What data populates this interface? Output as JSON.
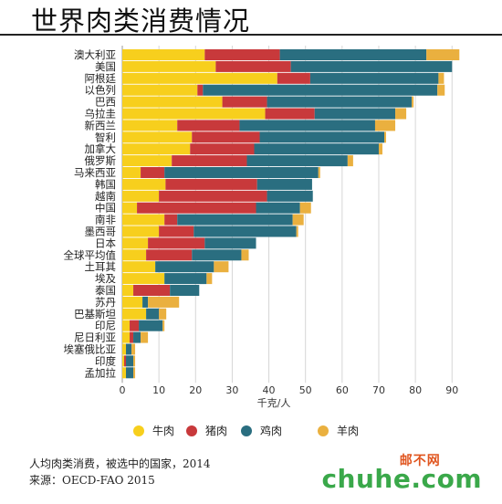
{
  "title": "世界肉类消费情况",
  "footer": {
    "caption": "人均肉类消费，被选中的国家，2014",
    "source": "来源：OECD-FAO 2015"
  },
  "brand": {
    "name_cn": "邮不网",
    "domain": "chuhe.com"
  },
  "colors": {
    "beef": "#f7cf1d",
    "pork": "#c8393b",
    "chicken": "#2a6e80",
    "lamb": "#eab03f"
  },
  "chart_data": {
    "type": "bar",
    "orientation": "horizontal",
    "stacked": true,
    "xlabel": "千克/人",
    "ylabel": "",
    "xlim": [
      0,
      92
    ],
    "xticks": [
      0,
      10,
      20,
      30,
      40,
      50,
      60,
      70,
      80,
      90
    ],
    "grid": "vertical",
    "legend_position": "bottom",
    "categories": [
      "澳大利亚",
      "美国",
      "阿根廷",
      "以色列",
      "巴西",
      "乌拉圭",
      "新西兰",
      "智利",
      "加拿大",
      "俄罗斯",
      "马来西亚",
      "韩国",
      "越南",
      "中国",
      "南非",
      "墨西哥",
      "日本",
      "全球平均值",
      "土耳其",
      "埃及",
      "泰国",
      "苏丹",
      "巴基斯坦",
      "印尼",
      "尼日利亚",
      "埃塞俄比亚",
      "印度",
      "孟加拉"
    ],
    "series": [
      {
        "name": "牛肉",
        "values": [
          22.5,
          25.5,
          42.3,
          20.5,
          27.3,
          39.0,
          15.0,
          19.0,
          18.5,
          13.5,
          5.0,
          11.8,
          10.0,
          4.0,
          11.5,
          10.0,
          7.0,
          6.5,
          9.0,
          11.5,
          3.0,
          5.5,
          6.5,
          2.0,
          2.0,
          1.0,
          0.5,
          1.0
        ]
      },
      {
        "name": "猪肉",
        "values": [
          20.5,
          20.5,
          9.0,
          1.5,
          12.2,
          13.5,
          17.0,
          18.5,
          17.5,
          20.5,
          6.5,
          25.0,
          29.5,
          32.5,
          3.5,
          9.5,
          15.5,
          12.5,
          0,
          0,
          10.0,
          0,
          0,
          2.5,
          1.0,
          0,
          0.5,
          0
        ]
      },
      {
        "name": "鸡肉",
        "values": [
          40.0,
          44.0,
          35.0,
          64.0,
          39.5,
          22.0,
          37.0,
          34.0,
          34.0,
          27.5,
          42.0,
          15.0,
          12.5,
          12.0,
          31.5,
          28.0,
          14.0,
          13.5,
          16.0,
          11.5,
          8.0,
          1.5,
          3.5,
          6.5,
          2.0,
          1.5,
          2.0,
          2.0
        ]
      },
      {
        "name": "羊肉",
        "values": [
          9.0,
          0,
          1.5,
          2.0,
          0.5,
          3.0,
          5.5,
          0.5,
          1.0,
          1.5,
          0.5,
          0,
          0,
          3.0,
          3.0,
          0.5,
          0,
          2.0,
          4.0,
          1.5,
          0,
          8.5,
          2.0,
          0.5,
          2.0,
          1.0,
          0.5,
          0.5
        ]
      }
    ]
  }
}
